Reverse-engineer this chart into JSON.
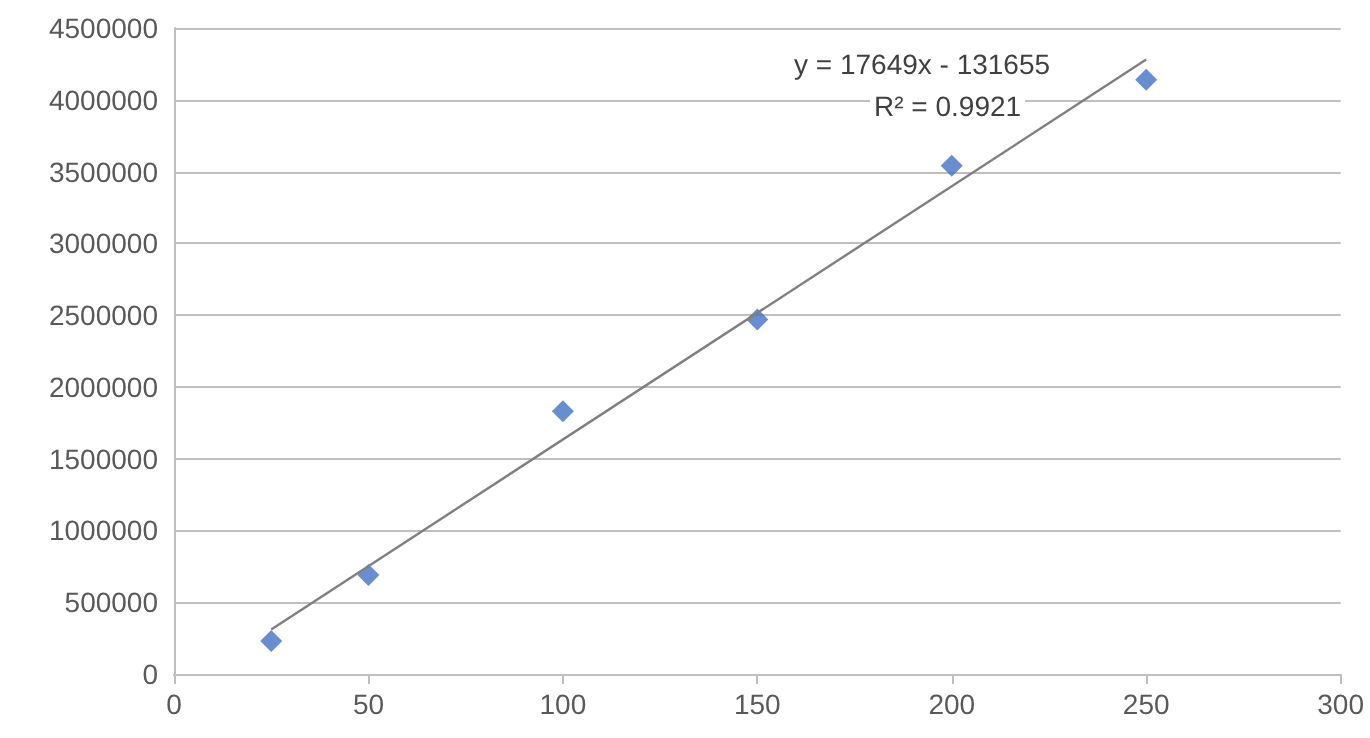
{
  "chart_data": {
    "type": "scatter",
    "marker": "diamond",
    "grid": "y",
    "xlim": [
      0,
      300
    ],
    "xticks": [
      0,
      50,
      100,
      150,
      200,
      250,
      300
    ],
    "ylim": [
      0,
      4500000
    ],
    "yticks": [
      0,
      500000,
      1000000,
      1500000,
      2000000,
      2500000,
      3000000,
      3500000,
      4000000,
      4500000
    ],
    "series": [
      {
        "color": "#4472c4",
        "x": [
          25,
          50,
          100,
          150,
          200,
          250
        ],
        "values": [
          230000,
          690000,
          1830000,
          2470000,
          3540000,
          4140000
        ]
      },
      {
        "type": "line",
        "marker": "none",
        "color": "#7f7f7f",
        "x": [
          25,
          250
        ],
        "values": [
          310000,
          4280000
        ]
      }
    ],
    "annotations": [
      "y = 17649x - 131655",
      "R² = 0.9921"
    ]
  }
}
